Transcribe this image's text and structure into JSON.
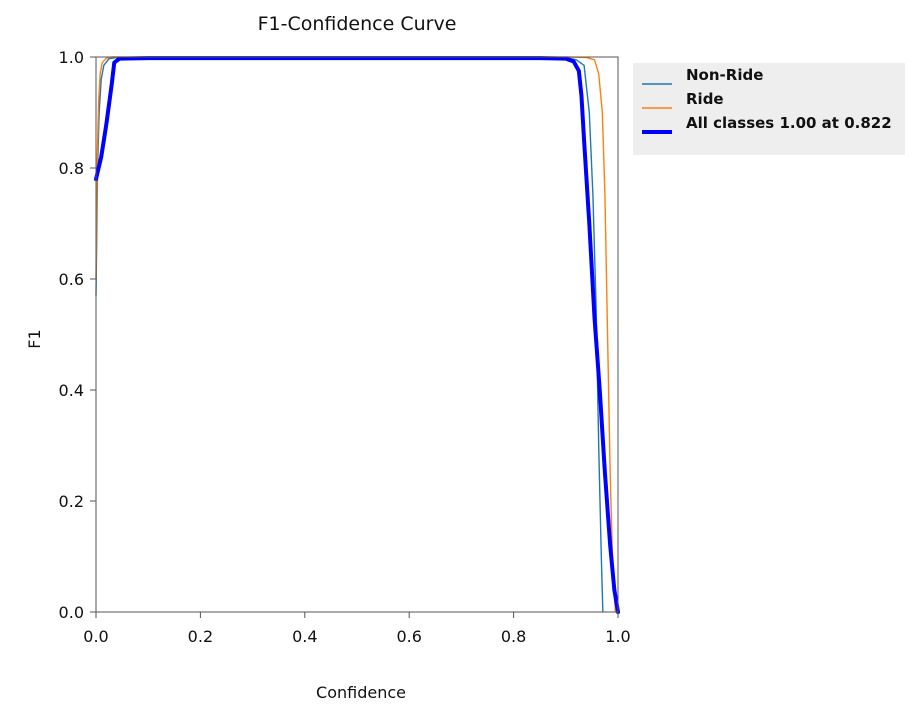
{
  "chart_data": {
    "type": "line",
    "title": "F1-Confidence Curve",
    "xlabel": "Confidence",
    "ylabel": "F1",
    "xlim": [
      0,
      1
    ],
    "ylim": [
      0,
      1
    ],
    "xticks": [
      "0.0",
      "0.2",
      "0.4",
      "0.6",
      "0.8",
      "1.0"
    ],
    "yticks": [
      "0.0",
      "0.2",
      "0.4",
      "0.6",
      "0.8",
      "1.0"
    ],
    "grid": false,
    "legend_position": "outside-top-right",
    "series": [
      {
        "name": "Non-Ride",
        "color": "#1f77b4",
        "points": [
          [
            0,
            0.57
          ],
          [
            0.003,
            0.8
          ],
          [
            0.006,
            0.9
          ],
          [
            0.01,
            0.96
          ],
          [
            0.015,
            0.985
          ],
          [
            0.025,
            0.997
          ],
          [
            0.04,
            0.999
          ],
          [
            0.1,
            1.0
          ],
          [
            0.5,
            1.0
          ],
          [
            0.85,
            1.0
          ],
          [
            0.9,
            0.999
          ],
          [
            0.92,
            0.995
          ],
          [
            0.935,
            0.985
          ],
          [
            0.945,
            0.9
          ],
          [
            0.952,
            0.75
          ],
          [
            0.958,
            0.55
          ],
          [
            0.963,
            0.3
          ],
          [
            0.968,
            0.1
          ],
          [
            0.971,
            0.0
          ]
        ]
      },
      {
        "name": "Ride",
        "color": "#ff7f0e",
        "points": [
          [
            0,
            0.6
          ],
          [
            0.002,
            0.8
          ],
          [
            0.005,
            0.92
          ],
          [
            0.008,
            0.97
          ],
          [
            0.012,
            0.99
          ],
          [
            0.02,
            0.998
          ],
          [
            0.03,
            1.0
          ],
          [
            0.5,
            1.0
          ],
          [
            0.9,
            1.0
          ],
          [
            0.94,
            0.999
          ],
          [
            0.955,
            0.995
          ],
          [
            0.963,
            0.97
          ],
          [
            0.97,
            0.9
          ],
          [
            0.975,
            0.75
          ],
          [
            0.98,
            0.5
          ],
          [
            0.985,
            0.25
          ],
          [
            0.99,
            0.08
          ],
          [
            0.995,
            0.0
          ]
        ]
      },
      {
        "name": "All classes 1.00 at 0.822",
        "color": "#0000ff",
        "points": [
          [
            0,
            0.78
          ],
          [
            0.01,
            0.82
          ],
          [
            0.02,
            0.88
          ],
          [
            0.03,
            0.95
          ],
          [
            0.035,
            0.99
          ],
          [
            0.045,
            0.997
          ],
          [
            0.1,
            0.998
          ],
          [
            0.5,
            0.998
          ],
          [
            0.85,
            0.998
          ],
          [
            0.9,
            0.997
          ],
          [
            0.915,
            0.992
          ],
          [
            0.925,
            0.975
          ],
          [
            0.93,
            0.93
          ],
          [
            0.935,
            0.85
          ],
          [
            0.945,
            0.7
          ],
          [
            0.955,
            0.53
          ],
          [
            0.965,
            0.4
          ],
          [
            0.975,
            0.25
          ],
          [
            0.985,
            0.12
          ],
          [
            0.993,
            0.04
          ],
          [
            1.0,
            0.0
          ]
        ]
      }
    ]
  }
}
